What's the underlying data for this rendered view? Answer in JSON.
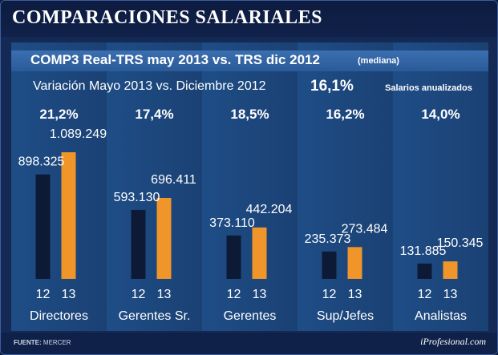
{
  "header": {
    "title": "COMPARACIONES SALARIALES"
  },
  "subtitle": {
    "main": "COMP3 Real-TRS may 2013 vs. TRS dic 2012",
    "note": "(mediana)"
  },
  "variation": {
    "label": "Variación Mayo 2013 vs. Diciembre 2012",
    "value": "16,1%",
    "note": "Salarios anualizados"
  },
  "footer": {
    "source_label": "FUENTE:",
    "source_value": "MERCER",
    "brand": "iProfesional.com"
  },
  "colors": {
    "dark_bar": "#0c1a36",
    "orange_bar": "#f0952a"
  },
  "chart_data": {
    "type": "bar",
    "title": "COMP3 Real-TRS may 2013 vs. TRS dic 2012",
    "categories": [
      "Directores",
      "Gerentes Sr.",
      "Gerentes",
      "Sup/Jefes",
      "Analistas"
    ],
    "series": [
      {
        "name": "12",
        "values": [
          898325,
          593130,
          373110,
          235373,
          131885
        ],
        "labels": [
          "898.325",
          "593.130",
          "373.110",
          "235.373",
          "131.885"
        ]
      },
      {
        "name": "13",
        "values": [
          1089249,
          696411,
          442204,
          273484,
          150345
        ],
        "labels": [
          "1.089.249",
          "696.411",
          "442.204",
          "273.484",
          "150.345"
        ]
      }
    ],
    "percent_changes": [
      "21,2%",
      "17,4%",
      "18,5%",
      "16,2%",
      "14,0%"
    ],
    "ylim": [
      0,
      1089249
    ],
    "xlabel": "",
    "ylabel": ""
  }
}
